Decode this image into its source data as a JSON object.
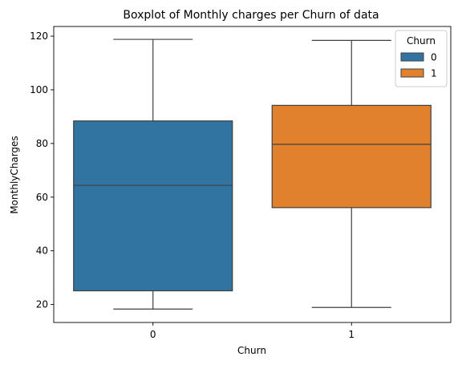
{
  "chart_data": {
    "type": "boxplot",
    "title": "Boxplot of Monthly charges per Churn of data",
    "xlabel": "Churn",
    "ylabel": "MonthlyCharges",
    "categories": [
      "0",
      "1"
    ],
    "ylim": [
      13.3,
      123.6
    ],
    "yticks": [
      20,
      40,
      60,
      80,
      100,
      120
    ],
    "grid": false,
    "legend": {
      "title": "Churn",
      "placement": "top-right"
    },
    "series": [
      {
        "name": "0",
        "color": "#3274a1",
        "min": 18.3,
        "q1": 25.1,
        "median": 64.4,
        "q3": 88.4,
        "max": 118.8
      },
      {
        "name": "1",
        "color": "#e1812c",
        "min": 18.9,
        "q1": 56.1,
        "median": 79.7,
        "q3": 94.2,
        "max": 118.4
      }
    ]
  }
}
